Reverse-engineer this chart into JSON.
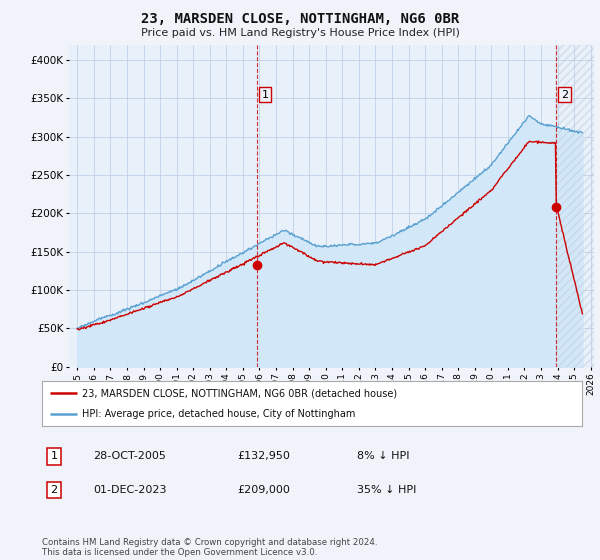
{
  "title": "23, MARSDEN CLOSE, NOTTINGHAM, NG6 0BR",
  "subtitle": "Price paid vs. HM Land Registry's House Price Index (HPI)",
  "ylabel_ticks": [
    "£0",
    "£50K",
    "£100K",
    "£150K",
    "£200K",
    "£250K",
    "£300K",
    "£350K",
    "£400K"
  ],
  "ylim": [
    0,
    420000
  ],
  "xlim_start": 1994.5,
  "xlim_end": 2026.2,
  "hpi_color": "#5aa0d0",
  "hpi_fill_color": "#d0e8f8",
  "price_color": "#cc0000",
  "transaction1_x": 2005.83,
  "transaction1_y": 132950,
  "transaction2_x": 2023.92,
  "transaction2_y": 209000,
  "transaction1_date": "28-OCT-2005",
  "transaction1_price": "£132,950",
  "transaction1_hpi_diff": "8% ↓ HPI",
  "transaction2_date": "01-DEC-2023",
  "transaction2_price": "£209,000",
  "transaction2_hpi_diff": "35% ↓ HPI",
  "legend_line1": "23, MARSDEN CLOSE, NOTTINGHAM, NG6 0BR (detached house)",
  "legend_line2": "HPI: Average price, detached house, City of Nottingham",
  "footnote": "Contains HM Land Registry data © Crown copyright and database right 2024.\nThis data is licensed under the Open Government Licence v3.0.",
  "background_color": "#f0f4fa",
  "plot_bg_color": "#e8f0fa",
  "grid_color": "#b8cce4",
  "hatch_color": "#c0c8d8"
}
